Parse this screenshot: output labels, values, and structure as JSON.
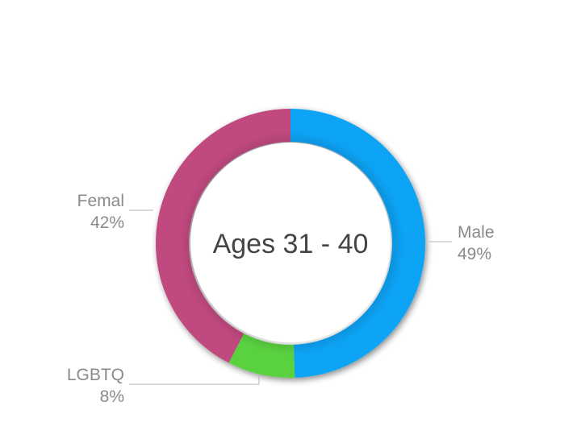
{
  "chart_data": {
    "type": "pie",
    "variant": "donut",
    "center_label": "Ages 31 - 40",
    "slices": [
      {
        "name": "Male",
        "label": "Male",
        "value": 49,
        "value_label": "49%",
        "color": "#0aa4f6"
      },
      {
        "name": "LGBTQ",
        "label": "LGBTQ",
        "value": 8,
        "value_label": "8%",
        "color": "#5ad23f"
      },
      {
        "name": "Female",
        "label": "Femal",
        "value": 42,
        "value_label": "42%",
        "color": "#c0497f"
      }
    ],
    "title": "",
    "legend": "none"
  }
}
